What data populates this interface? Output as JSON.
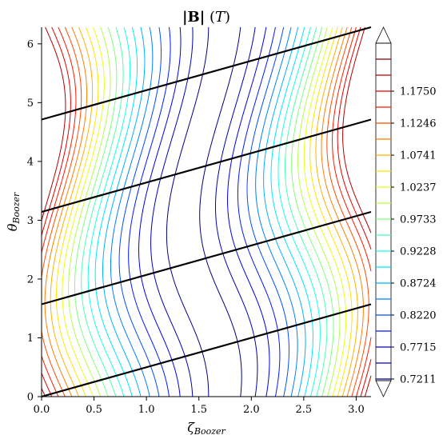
{
  "chart_data": {
    "type": "contour",
    "title": "|B| (T)",
    "xlabel": "ζ_Boozer",
    "ylabel": "θ_Boozer",
    "xlim": [
      0,
      3.1416
    ],
    "ylim": [
      0,
      6.2832
    ],
    "xticks": [
      "0.0",
      "0.5",
      "1.0",
      "1.5",
      "2.0",
      "2.5",
      "3.0"
    ],
    "yticks": [
      "0",
      "1",
      "2",
      "3",
      "4",
      "5",
      "6"
    ],
    "colorbar": {
      "ticks": [
        "0.7211",
        "0.7715",
        "0.8220",
        "0.8724",
        "0.9228",
        "0.9733",
        "1.0237",
        "1.0741",
        "1.1246",
        "1.1750"
      ],
      "level_min": 0.7211,
      "level_step": 0.02522,
      "level_count": 21,
      "colormap": "jet",
      "extend": "both"
    },
    "field_lines": {
      "slope": 0.5,
      "intercepts_theta": [
        0.0,
        1.5708,
        3.1416,
        4.7124
      ],
      "color": "#000000"
    },
    "field": {
      "description_in_data_units": "|B| minimum near zeta=1.55 with helical modulation 0.2*sin(theta-zeta)",
      "center_zeta": 1.55,
      "modulation": 0.2,
      "min": 0.708,
      "max": 1.215
    }
  }
}
